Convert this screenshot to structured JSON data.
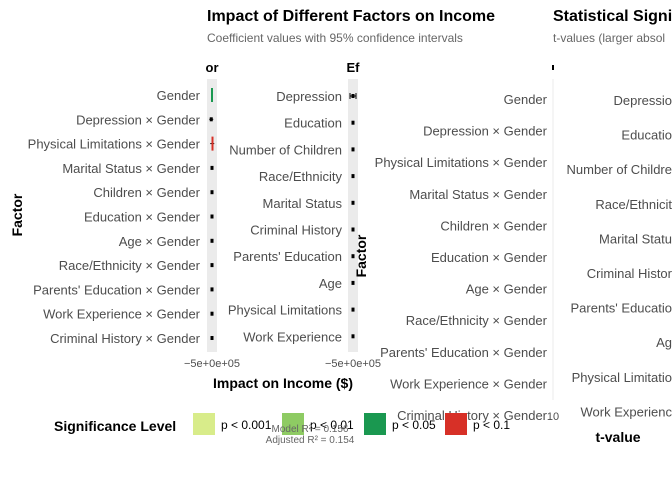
{
  "header": {
    "title": "Impact of Different Factors on Income",
    "subtitle": "Coefficient values with 95% confidence intervals",
    "right_title": "Statistical Signi",
    "right_subtitle": "t-values (larger absol"
  },
  "chart_data": [
    {
      "type": "forest",
      "panel": "interactions",
      "strip_label": "or",
      "categories": [
        "Gender",
        "Depression × Gender",
        "Physical Limitations × Gender",
        "Marital Status × Gender",
        "Children × Gender",
        "Education × Gender",
        "Age × Gender",
        "Race/Ethnicity × Gender",
        "Parents' Education × Gender",
        "Work Experience × Gender",
        "Criminal History × Gender"
      ],
      "estimates": [
        0.0,
        -0.15,
        0.1,
        0.0,
        0.0,
        0.0,
        0.0,
        0.0,
        0.0,
        0.0,
        0.0
      ],
      "ci_low": [
        -0.05,
        -0.55,
        -0.35,
        -0.03,
        -0.03,
        -0.03,
        -0.03,
        -0.03,
        -0.03,
        -0.03,
        -0.03
      ],
      "ci_high": [
        0.05,
        0.25,
        0.45,
        0.03,
        0.03,
        0.03,
        0.03,
        0.03,
        0.03,
        0.03,
        0.03
      ],
      "significance": [
        "p < 0.05",
        null,
        "p < 0.1",
        null,
        null,
        null,
        null,
        null,
        null,
        null,
        null
      ],
      "xlim": [
        -1,
        1
      ],
      "ylabel": "Factor"
    },
    {
      "type": "forest",
      "panel": "main effects",
      "strip_label": "Ef",
      "categories": [
        "Depression",
        "Education",
        "Number of Children",
        "Race/Ethnicity",
        "Marital Status",
        "Criminal History",
        "Parents' Education",
        "Age",
        "Physical Limitations",
        "Work Experience"
      ],
      "estimates": [
        0.0,
        0.0,
        0.0,
        0.0,
        0.0,
        0.0,
        0.0,
        0.0,
        0.0,
        0.0
      ],
      "ci_low": [
        -0.6,
        -0.03,
        -0.03,
        -0.03,
        -0.03,
        -0.03,
        -0.03,
        -0.03,
        -0.03,
        -0.03
      ],
      "ci_high": [
        0.6,
        0.03,
        0.03,
        0.03,
        0.03,
        0.03,
        0.03,
        0.03,
        0.03,
        0.03
      ],
      "xlim": [
        -1,
        1
      ]
    },
    {
      "type": "bar",
      "panel": "t-values",
      "categories_left": [
        "Gender",
        "Depression × Gender",
        "Physical Limitations × Gender",
        "Marital Status × Gender",
        "Children × Gender",
        "Education × Gender",
        "Age × Gender",
        "Race/Ethnicity × Gender",
        "Parents' Education × Gender",
        "Work Experience × Gender",
        "Criminal History × Gender"
      ],
      "categories_right": [
        "Depressio",
        "Educatio",
        "Number of Childre",
        "Race/Ethnicit",
        "Marital Statu",
        "Criminal Histor",
        "Parents' Educatio",
        "Ag",
        "Physical Limitatio",
        "Work Experienc"
      ],
      "ylabel": "Factor",
      "xlabel": "t-value",
      "x_tick_label": "10"
    }
  ],
  "left_xlabel": "Impact on Income ($)",
  "x_ticks_left": "−5e+0e+05",
  "x_ticks_mid": "−5e+0e+05",
  "legend": {
    "title": "Significance Level",
    "items": [
      {
        "label": "p < 0.001",
        "color": "#d8ec8a"
      },
      {
        "label": "p < 0.01",
        "color": "#8ecb63"
      },
      {
        "label": "p < 0.05",
        "color": "#1a9850"
      },
      {
        "label": "p < 0.1",
        "color": "#d73027"
      }
    ]
  },
  "caption": {
    "line1": "Model R² = 0.156",
    "line2": "Adjusted R² = 0.154"
  }
}
